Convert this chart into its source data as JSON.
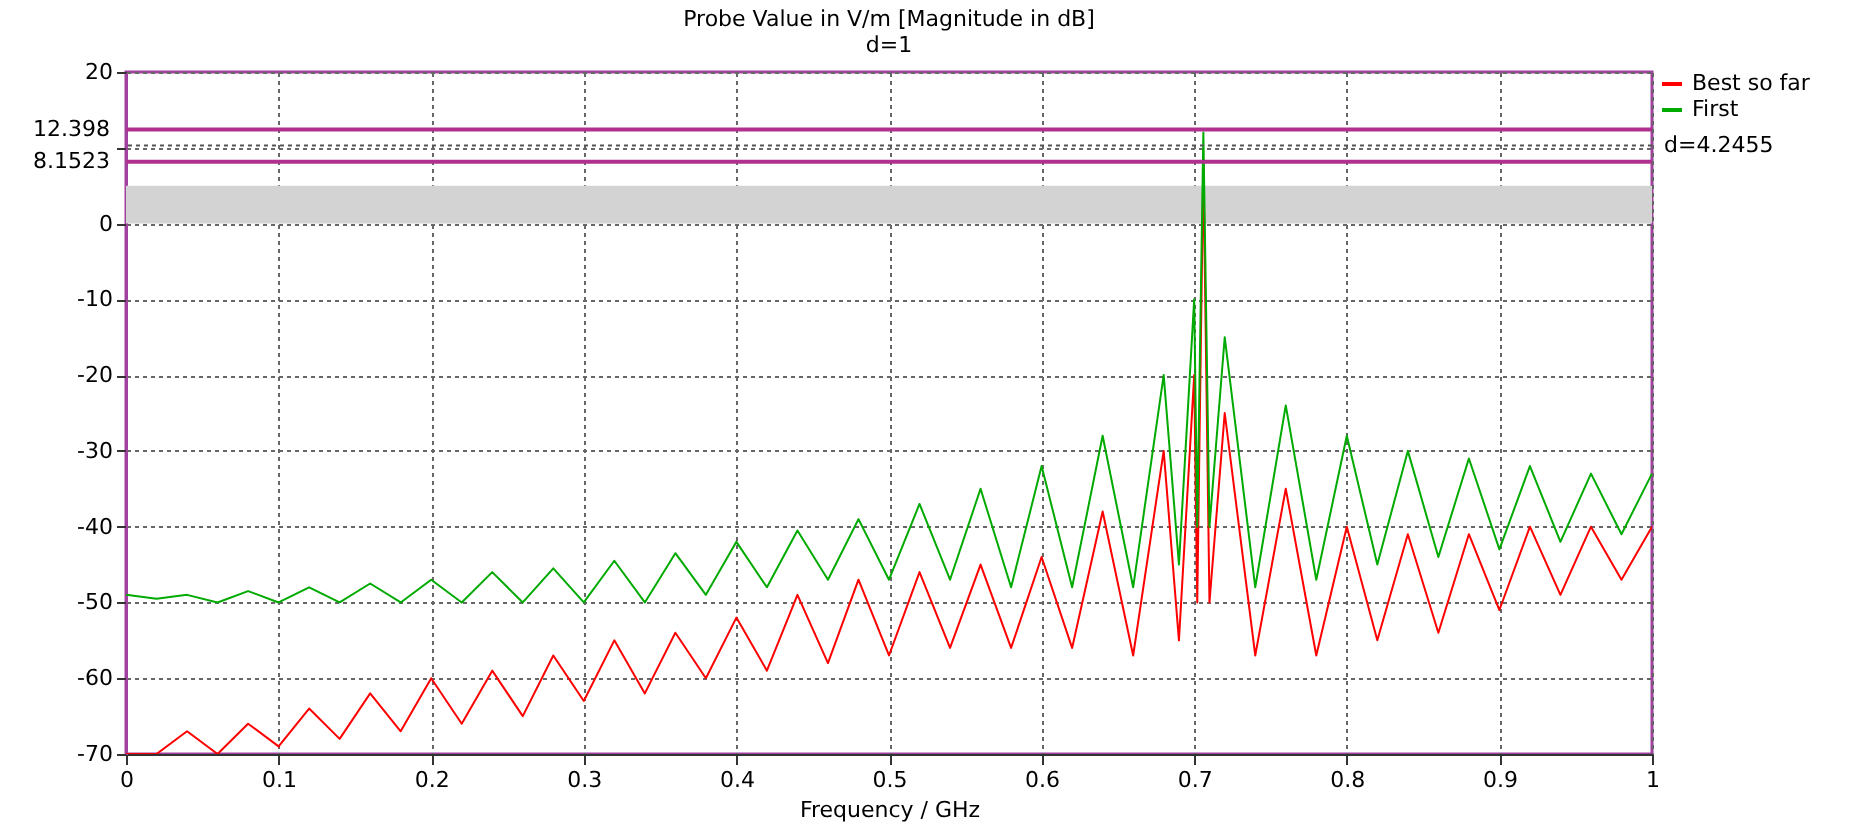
{
  "chart_data": {
    "type": "line",
    "title": "Probe Value in V/m [Magnitude in dB]",
    "subtitle": "d=1",
    "xlabel": "Frequency / GHz",
    "xlim": [
      0,
      1
    ],
    "xticks": [
      0,
      0.1,
      0.2,
      0.3,
      0.4,
      0.5,
      0.6,
      0.7,
      0.8,
      0.9,
      1
    ],
    "ylim": [
      -70,
      20
    ],
    "yticks": [
      -70,
      -60,
      -50,
      -40,
      -30,
      -20,
      -10,
      0,
      {
        "value": 10,
        "label": null
      },
      20
    ],
    "grid": true,
    "legend": "right",
    "x": [
      0,
      0.02,
      0.04,
      0.06,
      0.08,
      0.1,
      0.12,
      0.14,
      0.16,
      0.18,
      0.2,
      0.22,
      0.24,
      0.26,
      0.28,
      0.3,
      0.32,
      0.34,
      0.36,
      0.38,
      0.4,
      0.42,
      0.44,
      0.46,
      0.48,
      0.5,
      0.52,
      0.54,
      0.56,
      0.58,
      0.6,
      0.62,
      0.64,
      0.66,
      0.68,
      0.69,
      0.7,
      0.702,
      0.706,
      0.71,
      0.72,
      0.74,
      0.76,
      0.78,
      0.8,
      0.82,
      0.84,
      0.86,
      0.88,
      0.9,
      0.92,
      0.94,
      0.96,
      0.98,
      1
    ],
    "series": [
      {
        "name": "Best so far",
        "color": "#ff0000",
        "values": [
          -70,
          -70,
          -67,
          -70,
          -66,
          -69,
          -64,
          -68,
          -62,
          -67,
          -60,
          -66,
          -59,
          -65,
          -57,
          -63,
          -55,
          -62,
          -54,
          -60,
          -52,
          -59,
          -49,
          -58,
          -47,
          -57,
          -46,
          -56,
          -45,
          -56,
          -44,
          -56,
          -38,
          -57,
          -30,
          -55,
          -20,
          -50,
          8,
          -50,
          -25,
          -57,
          -35,
          -57,
          -40,
          -55,
          -41,
          -54,
          -41,
          -51,
          -40,
          -49,
          -40,
          -47,
          -40
        ]
      },
      {
        "name": "First",
        "color": "#00aa00",
        "values": [
          -49,
          -49.5,
          -49,
          -50,
          -48.5,
          -50,
          -48,
          -50,
          -47.5,
          -50,
          -47,
          -50,
          -46,
          -50,
          -45.5,
          -50,
          -44.5,
          -50,
          -43.5,
          -49,
          -42,
          -48,
          -40.5,
          -47,
          -39,
          -47,
          -37,
          -47,
          -35,
          -48,
          -32,
          -48,
          -28,
          -48,
          -20,
          -45,
          -10,
          -40,
          12,
          -40,
          -15,
          -48,
          -24,
          -47,
          -28,
          -45,
          -30,
          -44,
          -31,
          -43,
          -32,
          -42,
          -33,
          -41,
          -33
        ]
      }
    ],
    "ref_lines": [
      {
        "axis": "y",
        "value": 12.398,
        "label": "12.398",
        "color": "#b03090",
        "line_style": "solid"
      },
      {
        "axis": "y",
        "value": 8.1523,
        "label": "8.1523",
        "color": "#b03090",
        "line_style": "solid"
      },
      {
        "axis": "y",
        "value": 10.3,
        "color": "#555555",
        "line_style": "dotted"
      }
    ],
    "bands": [
      {
        "axis": "y",
        "from": 0,
        "to": 5,
        "color": "#d3d3d3"
      }
    ],
    "annotations": [
      {
        "text": "d=4.2455",
        "x": 1,
        "y": 10.3
      }
    ]
  }
}
